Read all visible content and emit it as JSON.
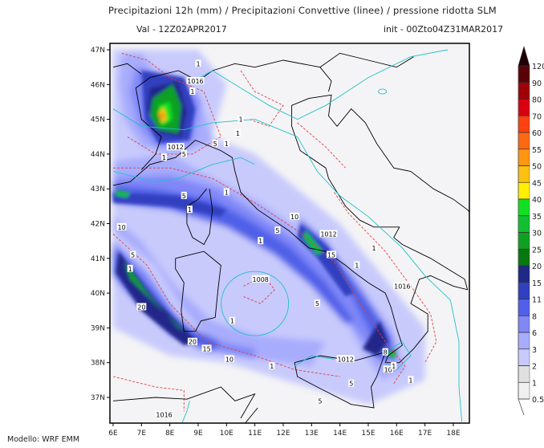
{
  "header": {
    "title": "Precipitazioni 12h (mm) / Precipitazioni Convettive (linee) / pressione ridotta SLM",
    "valid": "Val -   12Z02APR2017",
    "init": "init - 00Zto04Z31MAR2017"
  },
  "footer": {
    "model": "Modello: WRF EMM"
  },
  "map": {
    "lon_ticks": [
      "6E",
      "7E",
      "8E",
      "9E",
      "10E",
      "11E",
      "12E",
      "13E",
      "14E",
      "15E",
      "16E",
      "17E",
      "18E"
    ],
    "lat_ticks": [
      "47N",
      "46N",
      "45N",
      "44N",
      "43N",
      "42N",
      "41N",
      "40N",
      "39N",
      "38N",
      "37N"
    ],
    "isobar_color": "#20c0c8",
    "convective_color": "#e04040",
    "coast_color": "#000000",
    "contour_labels": [
      "1",
      "1016",
      "1",
      "1",
      "1",
      "5",
      "1",
      "1012",
      "5",
      "1",
      "5",
      "1",
      "10",
      "1",
      "10",
      "1012",
      "5",
      "1",
      "15",
      "1",
      "1008",
      "1",
      "5",
      "1",
      "1016",
      "5",
      "1",
      "20",
      "20",
      "15",
      "10",
      "1",
      "1012",
      "5",
      "10",
      "8",
      "1",
      "1016",
      "5",
      "1"
    ]
  },
  "colorbar": {
    "levels": [
      "120",
      "90",
      "80",
      "70",
      "60",
      "55",
      "50",
      "45",
      "40",
      "35",
      "30",
      "25",
      "20",
      "15",
      "11",
      "8",
      "6",
      "3",
      "2",
      "1",
      "0.5"
    ],
    "colors": [
      "#200008",
      "#5a0008",
      "#a00008",
      "#d80010",
      "#ff4010",
      "#ff6a10",
      "#ff9610",
      "#ffc010",
      "#fff000",
      "#10e020",
      "#10c030",
      "#10a020",
      "#087810",
      "#202888",
      "#3040c0",
      "#5060e8",
      "#8088f8",
      "#a8acfc",
      "#c8cafc",
      "#e0e0e0",
      "#f0f0f0"
    ]
  }
}
